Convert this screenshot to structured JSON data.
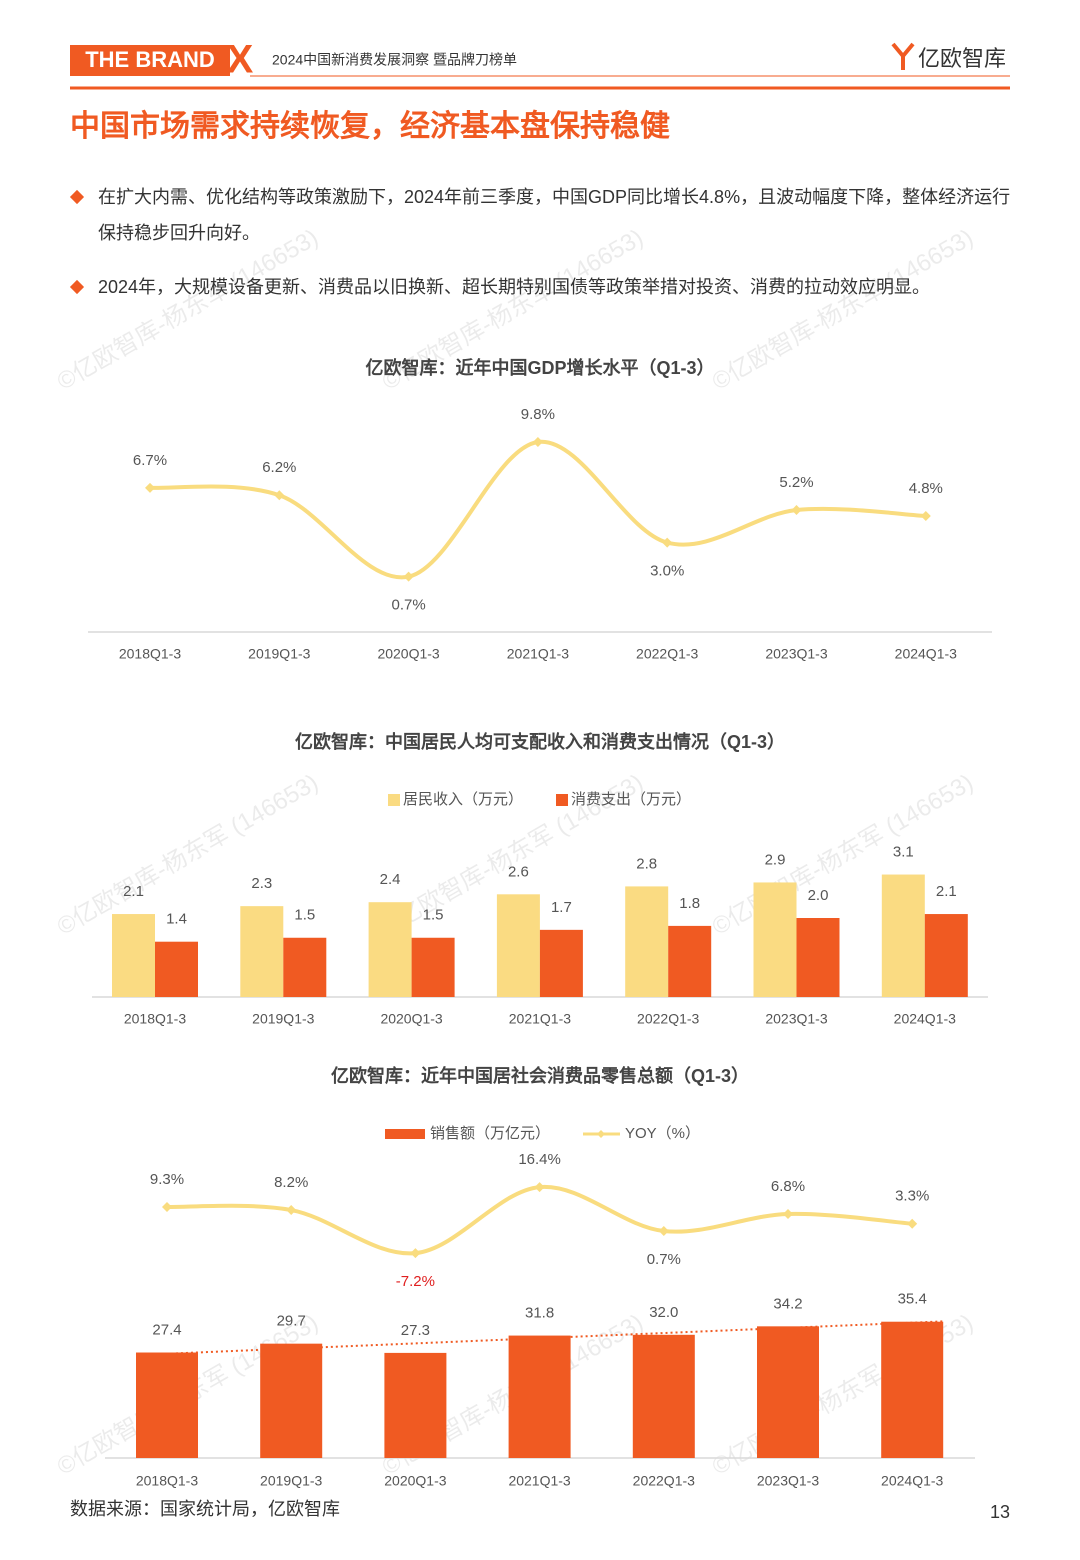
{
  "header": {
    "brand": "THE BRAND",
    "brand_mark": "X",
    "subtitle": "2024中国新消费发展洞察 暨品牌刀榜单",
    "logo": "亿欧智库"
  },
  "title": "中国市场需求持续恢复，经济基本盘保持稳健",
  "bullets": [
    "在扩大内需、优化结构等政策激励下，2024年前三季度，中国GDP同比增长4.8%，且波动幅度下降，整体经济运行保持稳步回升向好。",
    "2024年，大规模设备更新、消费品以旧换新、超长期特别国债等政策举措对投资、消费的拉动效应明显。"
  ],
  "watermark": "©亿欧智库-杨东军 (146653)",
  "chart_data": [
    {
      "type": "line",
      "title": "亿欧智库：近年中国GDP增长水平（Q1-3）",
      "categories": [
        "2018Q1-3",
        "2019Q1-3",
        "2020Q1-3",
        "2021Q1-3",
        "2022Q1-3",
        "2023Q1-3",
        "2024Q1-3"
      ],
      "values": [
        6.7,
        6.2,
        0.7,
        9.8,
        3.0,
        5.2,
        4.8
      ],
      "value_labels": [
        "6.7%",
        "6.2%",
        "0.7%",
        "9.8%",
        "3.0%",
        "5.2%",
        "4.8%"
      ],
      "color": "#f9dc7f"
    },
    {
      "type": "bar",
      "title": "亿欧智库：中国居民人均可支配收入和消费支出情况（Q1-3）",
      "categories": [
        "2018Q1-3",
        "2019Q1-3",
        "2020Q1-3",
        "2021Q1-3",
        "2022Q1-3",
        "2023Q1-3",
        "2024Q1-3"
      ],
      "series": [
        {
          "name": "居民收入（万元）",
          "color": "#fadb82",
          "values": [
            2.1,
            2.3,
            2.4,
            2.6,
            2.8,
            2.9,
            3.1
          ]
        },
        {
          "name": "消费支出（万元）",
          "color": "#f05a22",
          "values": [
            1.4,
            1.5,
            1.5,
            1.7,
            1.8,
            2.0,
            2.1
          ],
          "value_labels": [
            "1.4",
            "1.5",
            "1.5",
            "1.7",
            "1.8",
            "2.0",
            "2.1"
          ]
        }
      ]
    },
    {
      "type": "combo",
      "title": "亿欧智库：近年中国居社会消费品零售总额（Q1-3）",
      "categories": [
        "2018Q1-3",
        "2019Q1-3",
        "2020Q1-3",
        "2021Q1-3",
        "2022Q1-3",
        "2023Q1-3",
        "2024Q1-3"
      ],
      "series": [
        {
          "name": "销售额（万亿元）",
          "type": "bar",
          "color": "#f05a22",
          "values": [
            27.4,
            29.7,
            27.3,
            31.8,
            32.0,
            34.2,
            35.4
          ],
          "value_labels": [
            "27.4",
            "29.7",
            "27.3",
            "31.8",
            "32.0",
            "34.2",
            "35.4"
          ]
        },
        {
          "name": "YOY（%）",
          "type": "line",
          "axis": "y2",
          "color": "#f9dc7f",
          "values": [
            9.3,
            8.2,
            -7.2,
            16.4,
            0.7,
            6.8,
            3.3
          ],
          "value_labels": [
            "9.3%",
            "8.2%",
            "-7.2%",
            "16.4%",
            "0.7%",
            "6.8%",
            "3.3%"
          ]
        }
      ]
    }
  ],
  "source": "数据来源：国家统计局，亿欧智库",
  "page_number": "13"
}
